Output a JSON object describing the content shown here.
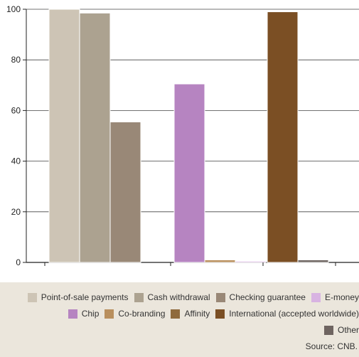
{
  "chart_data": {
    "type": "bar",
    "ylim": [
      0,
      100
    ],
    "yticks": [
      0,
      20,
      40,
      60,
      80,
      100
    ],
    "grid": true,
    "legend_position": "bottom",
    "groups": [
      {
        "bars": [
          {
            "series": "Point-of-sale payments",
            "value": 100
          },
          {
            "series": "Cash withdrawal",
            "value": 98.5
          },
          {
            "series": "Checking guarantee",
            "value": 55.5
          }
        ]
      },
      {
        "bars": [
          {
            "series": "Chip",
            "value": 70.5
          },
          {
            "series": "Co-branding",
            "value": 1
          },
          {
            "series": "E-money",
            "value": 0.5
          }
        ]
      },
      {
        "bars": [
          {
            "series": "International (accepted worldwide)",
            "value": 99
          },
          {
            "series": "Other",
            "value": 1
          }
        ]
      }
    ],
    "series": [
      {
        "name": "Point-of-sale payments",
        "color": "#cdc4b5"
      },
      {
        "name": "Cash withdrawal",
        "color": "#aca290"
      },
      {
        "name": "Checking guarantee",
        "color": "#998877"
      },
      {
        "name": "E-money",
        "color": "#d8b3e2"
      },
      {
        "name": "Chip",
        "color": "#b684c1"
      },
      {
        "name": "Co-branding",
        "color": "#b98f5d"
      },
      {
        "name": "Affinity",
        "color": "#8f6a3c"
      },
      {
        "name": "International (accepted worldwide)",
        "color": "#7b4f24"
      },
      {
        "name": "Other",
        "color": "#6e6460"
      }
    ]
  },
  "legend": {
    "rows": [
      [
        "Point-of-sale payments",
        "Cash withdrawal",
        "Checking guarantee",
        "E-money"
      ],
      [
        "Chip",
        "Co-branding",
        "Affinity",
        "International (accepted worldwide)"
      ],
      [
        "Other"
      ]
    ]
  },
  "source_text": "Source: CNB."
}
